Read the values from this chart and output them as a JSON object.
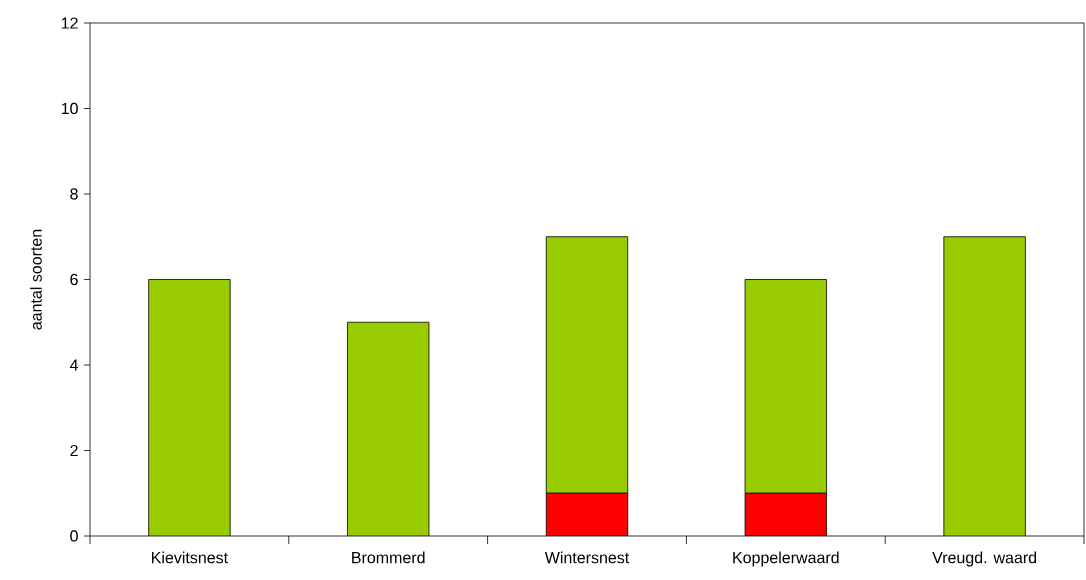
{
  "chart_data": {
    "type": "bar",
    "ylabel": "aantal soorten",
    "categories": [
      "Kievitsnest",
      "Brommerd",
      "Wintersnest",
      "Koppelerwaard",
      "Vreugd. waard"
    ],
    "stacked": true,
    "series": [
      {
        "color": "#ff0000",
        "values": [
          0,
          0,
          1,
          1,
          0
        ]
      },
      {
        "color": "#99cc00",
        "values": [
          6,
          5,
          6,
          5,
          7
        ]
      }
    ],
    "ylim": [
      0,
      12
    ],
    "yticks": [
      0,
      2,
      4,
      6,
      8,
      10,
      12
    ],
    "grid": false
  }
}
